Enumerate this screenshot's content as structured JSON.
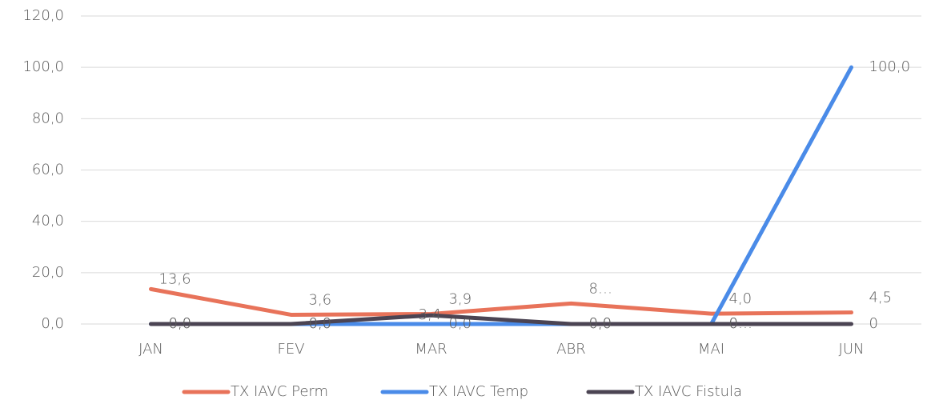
{
  "chart_data": {
    "type": "line",
    "categories": [
      "JAN",
      "FEV",
      "MAR",
      "ABR",
      "MAI",
      "JUN"
    ],
    "series": [
      {
        "name": "TX IAVC Perm",
        "color": "#e8735a",
        "values": [
          13.6,
          3.6,
          3.9,
          8,
          4.0,
          4.5
        ],
        "value_labels": [
          "13,6",
          "3,6",
          "3,9",
          "8…",
          "4,0",
          "4,5"
        ]
      },
      {
        "name": "TX IAVC Temp",
        "color": "#4a8be8",
        "values": [
          0,
          0,
          0,
          0,
          0,
          100
        ],
        "value_labels": [
          "0,0",
          "0,0",
          "0,0",
          "0,0",
          "0…",
          "100,0"
        ]
      },
      {
        "name": "TX IAVC Fistula",
        "color": "#4b4453",
        "values": [
          0,
          0,
          3.4,
          0,
          0,
          0
        ],
        "value_labels": [
          "0,0",
          "0,0",
          "3,4",
          "0,0",
          "0",
          "0"
        ]
      }
    ],
    "ylim": [
      0,
      120
    ],
    "yticks": [
      {
        "value": 0,
        "label": "0,0"
      },
      {
        "value": 20,
        "label": "20,0"
      },
      {
        "value": 40,
        "label": "40,0"
      },
      {
        "value": 60,
        "label": "60,0"
      },
      {
        "value": 80,
        "label": "80,0"
      },
      {
        "value": 100,
        "label": "100,0"
      },
      {
        "value": 120,
        "label": "120,0"
      }
    ],
    "grid": true,
    "legend": "bottom"
  }
}
